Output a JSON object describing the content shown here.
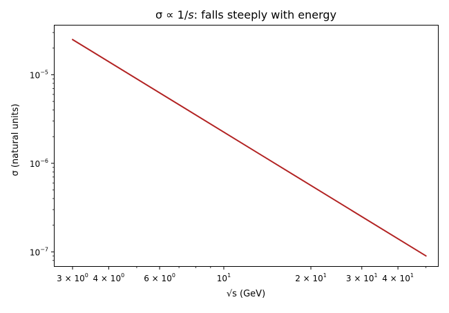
{
  "chart_data": {
    "type": "line",
    "title": "σ ∝ 1/s: falls steeply with energy",
    "title_parts": {
      "prefix": "σ ∝ 1/",
      "italic": "s",
      "suffix": ": falls steeply with energy"
    },
    "xlabel": "√s (GeV)",
    "ylabel": "σ (natural units)",
    "xscale": "log",
    "yscale": "log",
    "xlim": [
      2.6,
      55
    ],
    "ylim": [
      6.9e-08,
      3.6e-05
    ],
    "grid": false,
    "series": [
      {
        "x": [
          3,
          50
        ],
        "y": [
          2.5e-05,
          9e-08
        ],
        "color": "#b22222"
      }
    ],
    "x_ticks": [
      {
        "value": 3,
        "mantissa": "3",
        "exponent": "0"
      },
      {
        "value": 4,
        "mantissa": "4",
        "exponent": "0"
      },
      {
        "value": 6,
        "mantissa": "6",
        "exponent": "0"
      },
      {
        "value": 10,
        "mantissa": "",
        "exponent": "1"
      },
      {
        "value": 20,
        "mantissa": "2",
        "exponent": "1"
      },
      {
        "value": 30,
        "mantissa": "3",
        "exponent": "1"
      },
      {
        "value": 40,
        "mantissa": "4",
        "exponent": "1"
      }
    ],
    "x_minor_ticks": [
      5,
      7,
      8,
      9,
      50
    ],
    "y_ticks": [
      {
        "value": 1e-07,
        "exponent": "−7"
      },
      {
        "value": 1e-06,
        "exponent": "−6"
      },
      {
        "value": 1e-05,
        "exponent": "−5"
      }
    ],
    "y_minor_ticks": [
      8e-08,
      9e-08,
      2e-07,
      3e-07,
      4e-07,
      5e-07,
      6e-07,
      7e-07,
      8e-07,
      9e-07,
      2e-06,
      3e-06,
      4e-06,
      5e-06,
      6e-06,
      7e-06,
      8e-06,
      9e-06,
      2e-05,
      3e-05
    ]
  }
}
